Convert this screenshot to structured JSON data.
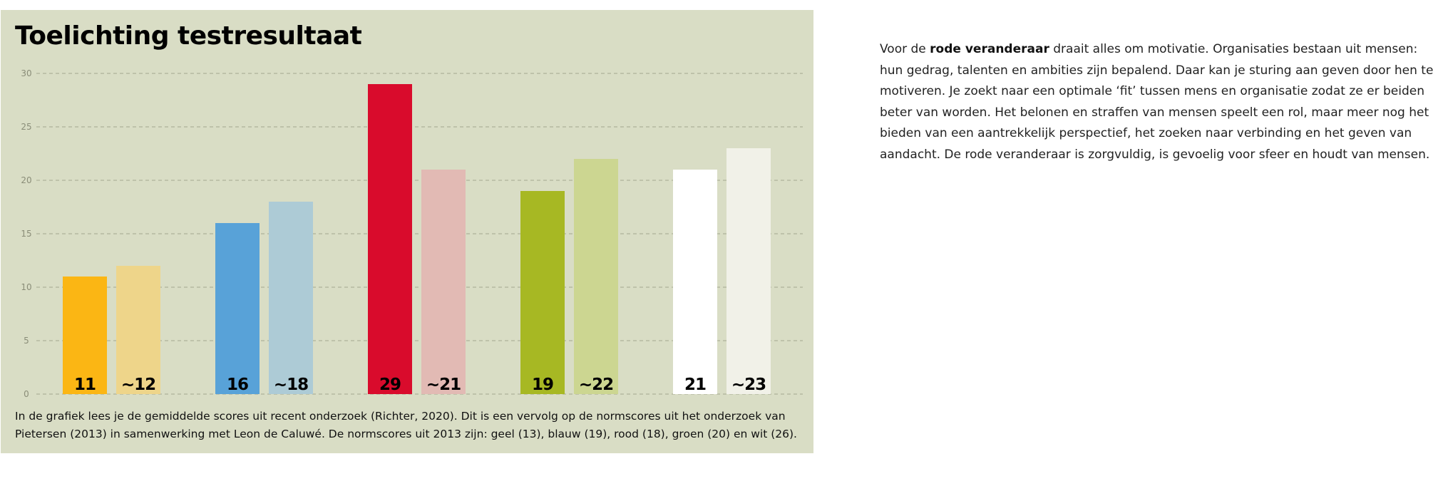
{
  "panel": {
    "title": "Toelichting testresultaat",
    "caption": "In de grafiek lees je de gemiddelde scores uit recent onderzoek (Richter, 2020). Dit is een vervolg op de normscores uit het onderzoek van Pietersen (2013) in samenwerking met Leon de Caluwé. De normscores uit 2013 zijn: geel (13), blauw (19), rood (18), groen (20) en wit (26)."
  },
  "colors": {
    "panel_background": "#d9ddc5",
    "geel": "#fbb614",
    "geel_norm": "#eed58a",
    "blauw": "#58a2d8",
    "blauw_norm": "#adcbd6",
    "rood": "#d90b2c",
    "rood_norm": "#e2bab4",
    "groen": "#a7b823",
    "groen_norm": "#ccd691",
    "wit": "#ffffff",
    "wit_norm": "#f1f1e8"
  },
  "chart_data": {
    "type": "bar",
    "title": "Toelichting testresultaat",
    "ylim": [
      0,
      30
    ],
    "yticks": [
      0,
      5,
      10,
      15,
      20,
      25,
      30
    ],
    "grid": true,
    "bars": [
      {
        "group": "geel",
        "value": 11,
        "label": "11",
        "color": "#fbb614"
      },
      {
        "group": "geel",
        "value": 12,
        "label": "~12",
        "color": "#eed58a"
      },
      {
        "group": "blauw",
        "value": 16,
        "label": "16",
        "color": "#58a2d8"
      },
      {
        "group": "blauw",
        "value": 18,
        "label": "~18",
        "color": "#adcbd6"
      },
      {
        "group": "rood",
        "value": 29,
        "label": "29",
        "color": "#d90b2c"
      },
      {
        "group": "rood",
        "value": 21,
        "label": "~21",
        "color": "#e2bab4"
      },
      {
        "group": "groen",
        "value": 19,
        "label": "19",
        "color": "#a7b823"
      },
      {
        "group": "groen",
        "value": 22,
        "label": "~22",
        "color": "#ccd691"
      },
      {
        "group": "wit",
        "value": 21,
        "label": "21",
        "color": "#ffffff"
      },
      {
        "group": "wit",
        "value": 23,
        "label": "~23",
        "color": "#f1f1e8"
      }
    ]
  },
  "explanation": {
    "text_before": "Voor de ",
    "highlight": "rode veranderaar",
    "text_after": " draait alles om motivatie. Organisaties bestaan uit mensen: hun gedrag, talenten en ambities zijn bepalend. Daar kan je sturing aan geven door hen te motiveren. Je zoekt naar een optimale ‘fit’ tussen mens en organisatie zodat ze er beiden beter van worden. Het belonen en straffen van mensen speelt een rol, maar meer nog het bieden van een aantrekkelijk perspectief, het zoeken naar verbinding en het geven van aandacht. De rode veranderaar is zorgvuldig, is gevoelig voor sfeer en houdt van mensen."
  }
}
